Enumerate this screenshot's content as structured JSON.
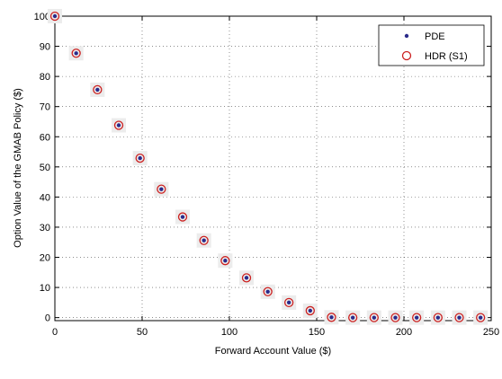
{
  "chart_data": {
    "type": "scatter",
    "xlabel": "Forward Account Value ($)",
    "ylabel": "Option Value of the GMAB Policy ($)",
    "xlim": [
      0,
      250
    ],
    "ylim": [
      -1,
      100
    ],
    "xticks": [
      0,
      50,
      100,
      150,
      200,
      250
    ],
    "yticks": [
      0,
      10,
      20,
      30,
      40,
      50,
      60,
      70,
      80,
      90,
      100
    ],
    "grid": true,
    "legend_position": "top-right",
    "x": [
      0,
      12.2,
      24.4,
      36.6,
      48.8,
      61.0,
      73.2,
      85.4,
      97.6,
      109.8,
      122.0,
      134.1,
      146.3,
      158.5,
      170.7,
      182.9,
      195.1,
      207.3,
      219.5,
      231.7,
      243.9
    ],
    "series": [
      {
        "name": "PDE",
        "marker": "dot",
        "color": "#2a2a8a",
        "values": [
          100,
          87.7,
          75.6,
          63.8,
          52.9,
          42.6,
          33.4,
          25.6,
          18.9,
          13.2,
          8.6,
          5.0,
          2.3,
          0.1,
          0,
          0,
          0,
          0,
          0,
          0,
          0
        ]
      },
      {
        "name": "HDR (S1)",
        "marker": "circle",
        "color": "#cc2020",
        "values": [
          100,
          87.7,
          75.6,
          63.8,
          52.9,
          42.6,
          33.4,
          25.6,
          18.9,
          13.2,
          8.6,
          5.0,
          2.3,
          0.1,
          0,
          0,
          0,
          0,
          0,
          0,
          0
        ]
      }
    ]
  }
}
